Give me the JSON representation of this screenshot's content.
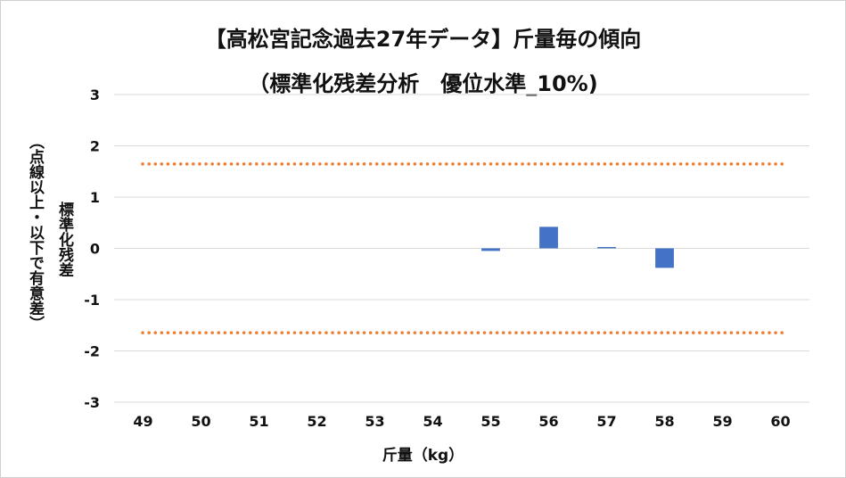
{
  "title_line1": "【高松宮記念過去27年データ】斤量毎の傾向",
  "title_line2": "（標準化残差分析　優位水準_10%)",
  "colors": {
    "bar": "#4472C4",
    "threshold": "#ED7D31",
    "grid": "#D9D9D9"
  },
  "chart_data": {
    "type": "bar",
    "categories": [
      "49",
      "50",
      "51",
      "52",
      "53",
      "54",
      "55",
      "56",
      "57",
      "58",
      "59",
      "60"
    ],
    "values": [
      null,
      null,
      null,
      null,
      null,
      null,
      -0.05,
      0.42,
      0.02,
      -0.38,
      null,
      null
    ],
    "ylim": [
      -3,
      3
    ],
    "yticks": [
      "-3",
      "-2",
      "-1",
      "0",
      "1",
      "2",
      "3"
    ],
    "ylabel_main": "標準化残差",
    "ylabel_sub": "（点線以上・以下で有意差）",
    "xlabel": "斤量（kg）",
    "thresholds": [
      1.645,
      -1.645
    ],
    "grid": true,
    "legend": "none"
  }
}
